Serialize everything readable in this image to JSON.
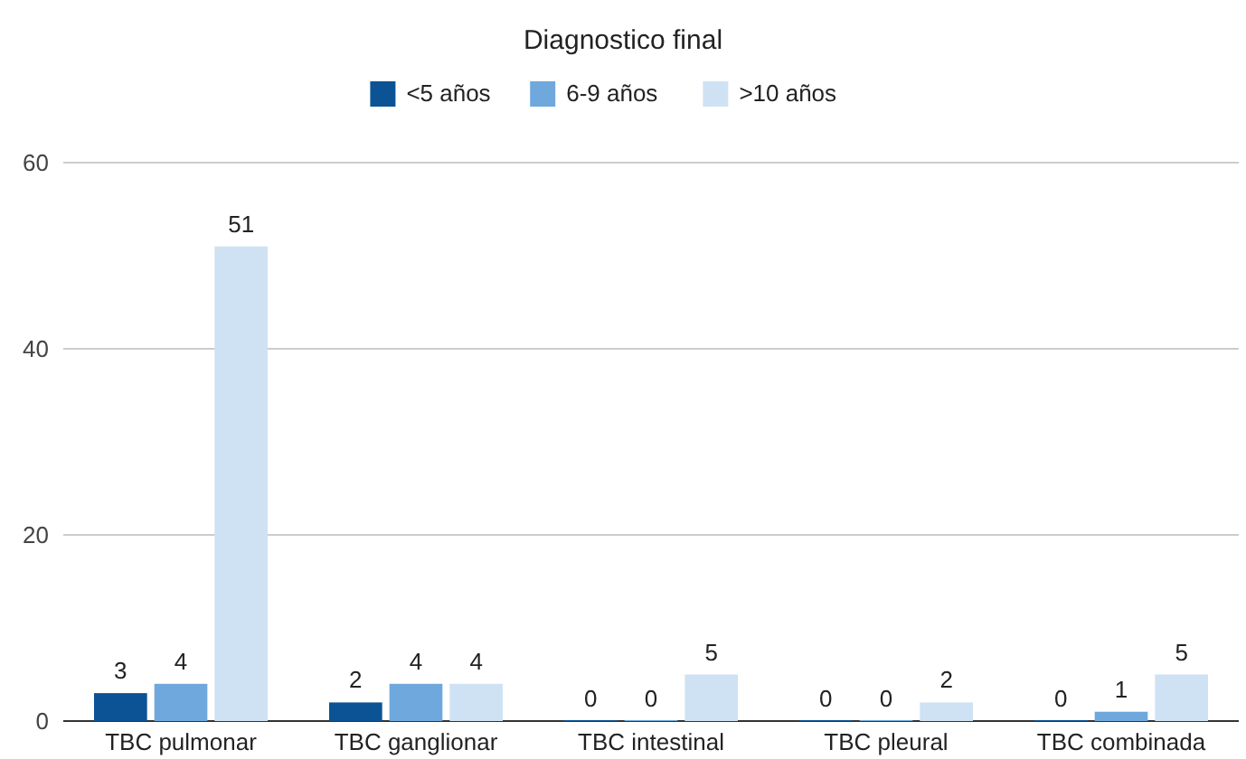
{
  "chart_data": {
    "type": "bar",
    "title": "Diagnostico final",
    "categories": [
      "TBC pulmonar",
      "TBC ganglionar",
      "TBC intestinal",
      "TBC pleural",
      "TBC combinada"
    ],
    "series": [
      {
        "name": "<5 años",
        "color": "#0b5394",
        "values": [
          3,
          2,
          0,
          0,
          0
        ]
      },
      {
        "name": "6-9 años",
        "color": "#6fa8dc",
        "values": [
          4,
          4,
          0,
          0,
          1
        ]
      },
      {
        "name": ">10 años",
        "color": "#cfe2f3",
        "values": [
          51,
          4,
          5,
          2,
          5
        ]
      }
    ],
    "ylim": [
      0,
      60
    ],
    "yticks": [
      0,
      20,
      40,
      60
    ],
    "grid": "y",
    "legend": "top",
    "data_labels": true
  }
}
